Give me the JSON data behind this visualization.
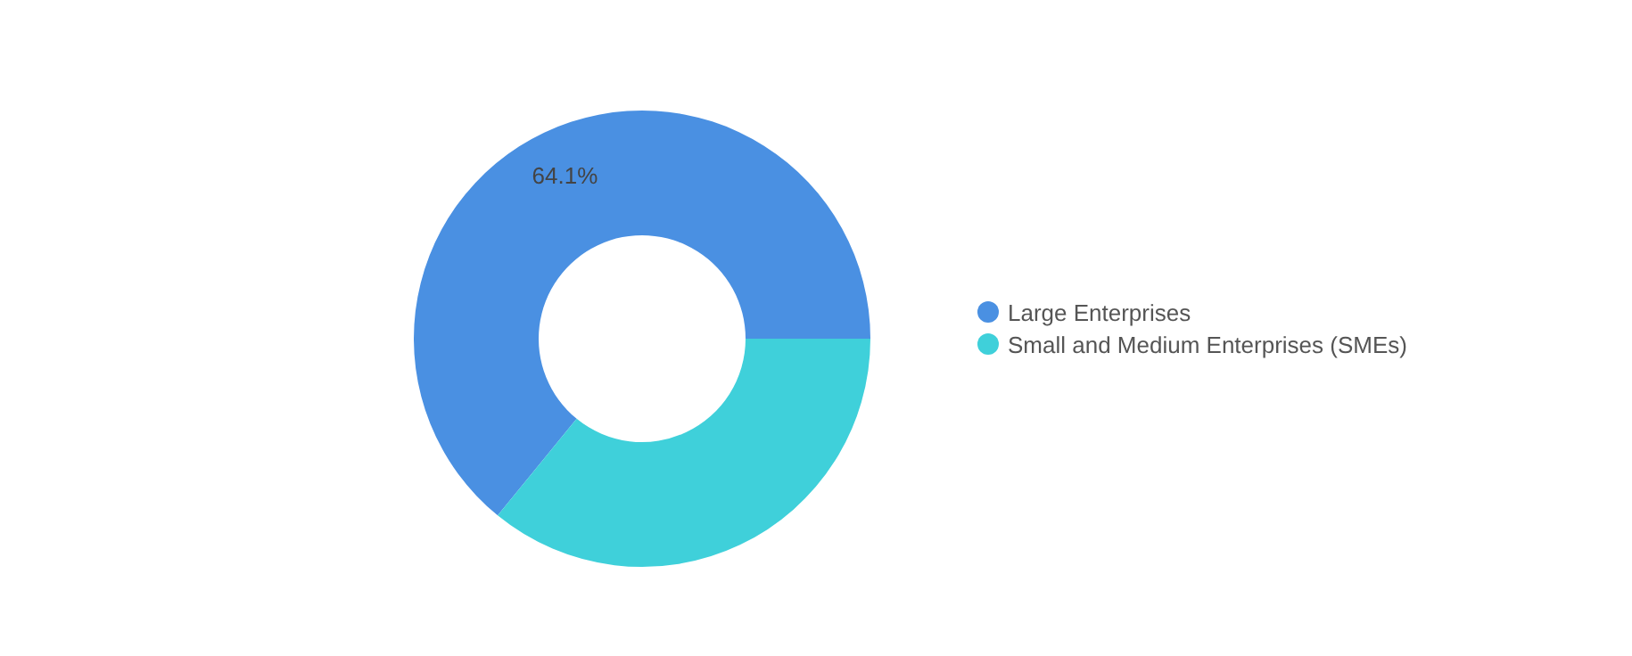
{
  "chart_data": {
    "type": "donut",
    "categories": [
      "Large Enterprises",
      "Small and Medium Enterprises (SMEs)"
    ],
    "values": [
      64.1,
      35.9
    ],
    "colors": [
      "#4a90e2",
      "#3fd0da"
    ],
    "value_labels": [
      "64.1%",
      null
    ],
    "legend": "right"
  }
}
